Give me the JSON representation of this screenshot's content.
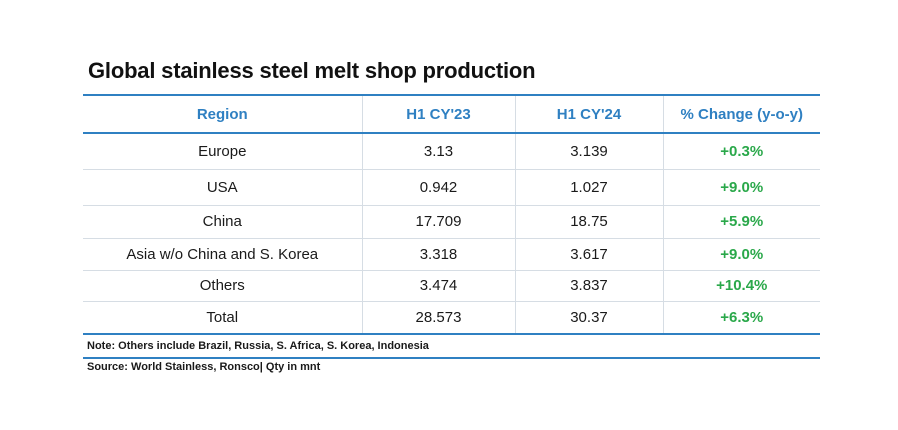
{
  "title": "Global stainless steel melt shop production",
  "table": {
    "headers": [
      "Region",
      "H1 CY'23",
      "H1 CY'24",
      "% Change (y-o-y)"
    ],
    "rows": [
      {
        "region": "Europe",
        "h1_cy23": "3.13",
        "h1_cy24": "3.139",
        "change": "+0.3%"
      },
      {
        "region": "USA",
        "h1_cy23": "0.942",
        "h1_cy24": "1.027",
        "change": "+9.0%"
      },
      {
        "region": "China",
        "h1_cy23": "17.709",
        "h1_cy24": "18.75",
        "change": "+5.9%"
      },
      {
        "region": "Asia w/o China and S. Korea",
        "h1_cy23": "3.318",
        "h1_cy24": "3.617",
        "change": "+9.0%"
      },
      {
        "region": "Others",
        "h1_cy23": "3.474",
        "h1_cy24": "3.837",
        "change": "+10.4%"
      },
      {
        "region": "Total",
        "h1_cy23": "28.573",
        "h1_cy24": "30.37",
        "change": "+6.3%"
      }
    ]
  },
  "note": "Note: Others include Brazil, Russia, S. Africa, S. Korea, Indonesia",
  "source": "Source: World Stainless, Ronsco| Qty in mnt",
  "colors": {
    "header_blue": "#2f80c2",
    "positive_green": "#2aa84a"
  }
}
